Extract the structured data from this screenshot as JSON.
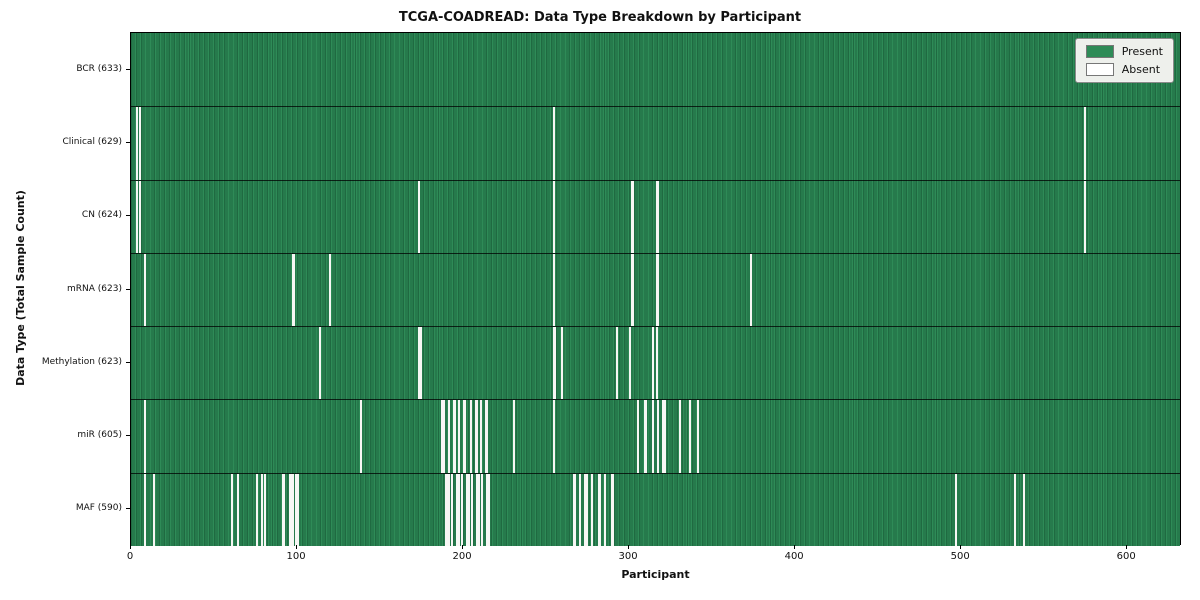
{
  "title": "TCGA-COADREAD: Data Type Breakdown by Participant",
  "chart_data": {
    "type": "heatmap",
    "title": "TCGA-COADREAD: Data Type Breakdown by Participant",
    "xlabel": "Participant",
    "ylabel": "Data Type (Total Sample Count)",
    "x_max": 633,
    "x_ticks": [
      0,
      100,
      200,
      300,
      400,
      500,
      600
    ],
    "grid": false,
    "legend_position": "upper right",
    "legend": [
      {
        "label": "Present",
        "color": "#2e8b57"
      },
      {
        "label": "Absent",
        "color": "#ffffff"
      }
    ],
    "colors": {
      "present": "#2e8b57",
      "present_edge": "#1f6a41",
      "absent": "#f7f7f5"
    },
    "rows": [
      {
        "label": "BCR (633)",
        "total": 633,
        "absent_segments": []
      },
      {
        "label": "Clinical (629)",
        "total": 629,
        "absent_segments": [
          [
            3,
            1
          ],
          [
            5,
            1
          ],
          [
            254,
            1
          ],
          [
            574,
            1
          ]
        ]
      },
      {
        "label": "CN (624)",
        "total": 624,
        "absent_segments": [
          [
            3,
            1
          ],
          [
            5,
            1
          ],
          [
            173,
            1
          ],
          [
            254,
            1
          ],
          [
            301,
            2
          ],
          [
            316,
            2
          ],
          [
            574,
            1
          ]
        ]
      },
      {
        "label": "mRNA (623)",
        "total": 623,
        "absent_segments": [
          [
            8,
            1
          ],
          [
            97,
            2
          ],
          [
            119,
            1
          ],
          [
            254,
            1
          ],
          [
            301,
            2
          ],
          [
            316,
            2
          ],
          [
            373,
            1
          ]
        ]
      },
      {
        "label": "Methylation (623)",
        "total": 623,
        "absent_segments": [
          [
            113,
            1
          ],
          [
            173,
            2
          ],
          [
            254,
            2
          ],
          [
            259,
            1
          ],
          [
            292,
            1
          ],
          [
            300,
            1
          ],
          [
            314,
            1
          ],
          [
            316,
            1
          ]
        ]
      },
      {
        "label": "miR (605)",
        "total": 605,
        "absent_segments": [
          [
            8,
            1
          ],
          [
            138,
            1
          ],
          [
            187,
            2
          ],
          [
            191,
            1
          ],
          [
            194,
            2
          ],
          [
            197,
            1
          ],
          [
            200,
            2
          ],
          [
            204,
            1
          ],
          [
            207,
            2
          ],
          [
            210,
            1
          ],
          [
            213,
            2
          ],
          [
            230,
            1
          ],
          [
            254,
            1
          ],
          [
            305,
            1
          ],
          [
            309,
            2
          ],
          [
            314,
            1
          ],
          [
            317,
            1
          ],
          [
            320,
            2
          ],
          [
            330,
            1
          ],
          [
            336,
            1
          ],
          [
            341,
            1
          ]
        ]
      },
      {
        "label": "MAF (590)",
        "total": 590,
        "absent_segments": [
          [
            8,
            1
          ],
          [
            13,
            1
          ],
          [
            60,
            1
          ],
          [
            64,
            1
          ],
          [
            75,
            1
          ],
          [
            78,
            1
          ],
          [
            80,
            1
          ],
          [
            91,
            2
          ],
          [
            95,
            3
          ],
          [
            99,
            2
          ],
          [
            189,
            3
          ],
          [
            193,
            1
          ],
          [
            196,
            2
          ],
          [
            199,
            1
          ],
          [
            202,
            2
          ],
          [
            205,
            1
          ],
          [
            208,
            2
          ],
          [
            211,
            1
          ],
          [
            214,
            2
          ],
          [
            266,
            2
          ],
          [
            270,
            1
          ],
          [
            273,
            2
          ],
          [
            277,
            1
          ],
          [
            281,
            2
          ],
          [
            285,
            1
          ],
          [
            289,
            2
          ],
          [
            496,
            1
          ],
          [
            532,
            1
          ],
          [
            537,
            1
          ]
        ]
      }
    ]
  }
}
